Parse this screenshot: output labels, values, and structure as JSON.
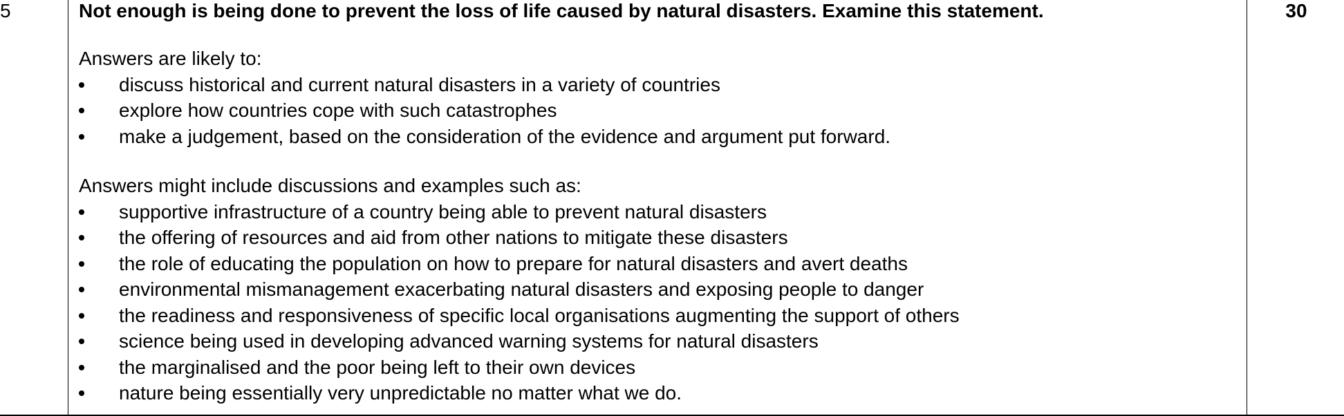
{
  "question": {
    "number": "5",
    "marks": "30",
    "prompt": "Not enough is being done to prevent the loss of life caused by natural disasters. Examine this statement."
  },
  "likely": {
    "intro": "Answers are likely to:",
    "items": [
      "discuss historical and current natural disasters in a variety of countries",
      "explore how countries cope with such catastrophes",
      "make a judgement, based on the consideration of the evidence and argument put forward."
    ]
  },
  "include": {
    "intro": "Answers might include discussions and examples such as:",
    "items": [
      "supportive infrastructure of a country being able to prevent natural disasters",
      "the offering of resources and aid from other nations to mitigate these disasters",
      "the role of educating the population on how to prepare for natural disasters and avert deaths",
      "environmental mismanagement exacerbating natural disasters and exposing people to danger",
      "the readiness and responsiveness of specific local organisations augmenting the support of others",
      "science being used in developing advanced warning systems for natural disasters",
      "the marginalised and the poor being left to their own devices",
      "nature being essentially very unpredictable no matter what we do."
    ]
  }
}
